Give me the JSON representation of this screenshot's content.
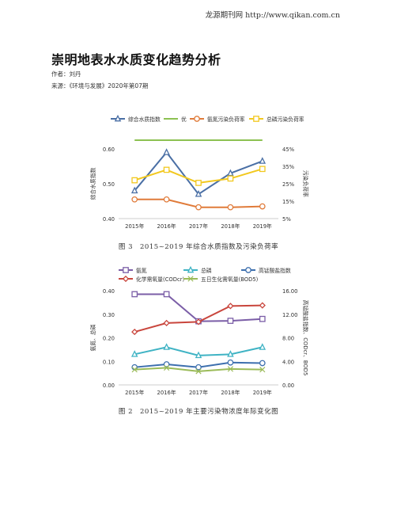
{
  "header": {
    "site": "龙源期刊网 http://www.qikan.com.cn"
  },
  "article": {
    "title": "崇明地表水水质变化趋势分析",
    "author": "作者：刘丹",
    "source": "来源：《环境与发展》2020年第07期"
  },
  "figure3": {
    "caption": "图 3　2015~2019 年综合水质指数及污染负荷率"
  },
  "figure2": {
    "caption": "图 2　2015~2019 年主要污染物浓度年际变化图"
  },
  "chart_data": [
    {
      "type": "line",
      "categories": [
        "2015年",
        "2016年",
        "2017年",
        "2018年",
        "2019年"
      ],
      "ylabel": "综合水质指数",
      "ylabel_right": "污染负荷率",
      "ylim": [
        0.4,
        0.6
      ],
      "yticks": [
        "0.40",
        "0.50",
        "0.60"
      ],
      "ylim_right": [
        0.05,
        0.45
      ],
      "yticks_right": [
        "5%",
        "15%",
        "25%",
        "35%",
        "45%"
      ],
      "legend_position": "top",
      "series": [
        {
          "name": "综合水质指数",
          "axis": "left",
          "values": [
            0.48,
            0.59,
            0.47,
            0.53,
            0.565
          ],
          "color": "#4a6fa5",
          "marker": "triangle"
        },
        {
          "name": "优",
          "axis": "left",
          "values": [
            0.625,
            0.625,
            0.625,
            0.625,
            0.625
          ],
          "color": "#8cc152",
          "marker": "none"
        },
        {
          "name": "氨氮污染负荷率",
          "axis": "right",
          "values": [
            0.16,
            0.16,
            0.115,
            0.115,
            0.12
          ],
          "color": "#e07b3a",
          "marker": "circle"
        },
        {
          "name": "总磷污染负荷率",
          "axis": "right",
          "values": [
            0.27,
            0.33,
            0.255,
            0.28,
            0.335
          ],
          "color": "#f2c81e",
          "marker": "square"
        }
      ]
    },
    {
      "type": "line",
      "categories": [
        "2015年",
        "2016年",
        "2017年",
        "2018年",
        "2019年"
      ],
      "ylabel": "氨氮、总磷",
      "ylabel_right": "高锰酸盐指数、CODcr、BOD5",
      "ylim": [
        0.0,
        0.4
      ],
      "yticks": [
        "0.00",
        "0.10",
        "0.20",
        "0.30",
        "0.40"
      ],
      "ylim_right": [
        0,
        16
      ],
      "yticks_right": [
        "0.00",
        "4.00",
        "8.00",
        "12.00",
        "16.00"
      ],
      "legend_position": "top",
      "series": [
        {
          "name": "氨氮",
          "axis": "left",
          "values": [
            0.385,
            0.385,
            0.27,
            0.272,
            0.28
          ],
          "color": "#7b5ea7",
          "marker": "square"
        },
        {
          "name": "总磷",
          "axis": "left",
          "values": [
            0.13,
            0.16,
            0.125,
            0.13,
            0.16
          ],
          "color": "#3fb3c4",
          "marker": "triangle"
        },
        {
          "name": "高锰酸盐指数",
          "axis": "right",
          "values": [
            3.0,
            3.5,
            3.0,
            3.8,
            3.7
          ],
          "color": "#3d6fae",
          "marker": "circle"
        },
        {
          "name": "化学需氧量(CODcr)",
          "axis": "right",
          "values": [
            9.0,
            10.5,
            10.7,
            13.4,
            13.5
          ],
          "color": "#c9463d",
          "marker": "diamond"
        },
        {
          "name": "五日生化需氧量(BOD5)",
          "axis": "right",
          "values": [
            2.6,
            2.9,
            2.3,
            2.7,
            2.6
          ],
          "color": "#9bbb59",
          "marker": "x"
        }
      ]
    }
  ]
}
